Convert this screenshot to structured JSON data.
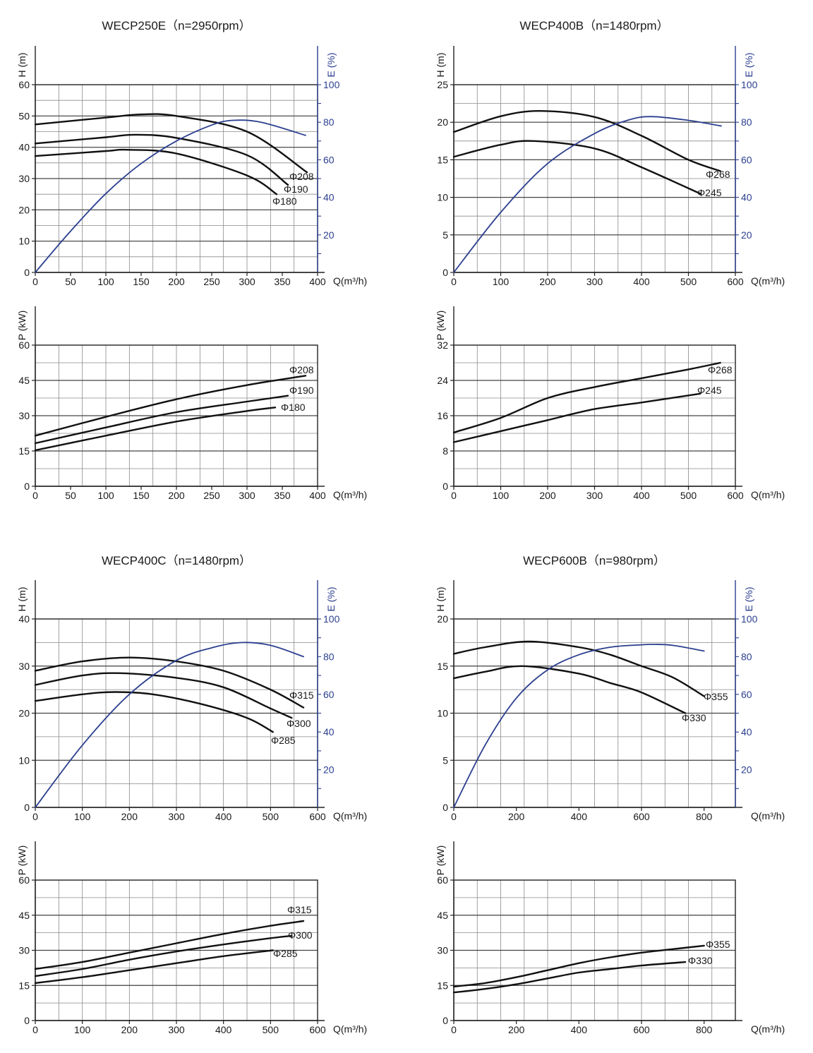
{
  "charts_meta": {
    "head_color": "#111111",
    "eff_color": "#2b3f8f",
    "grid_color": "#333333"
  },
  "chart_data": [
    {
      "type": "line",
      "title": "WECP250E（n=2950rpm）",
      "panels": [
        {
          "name": "head-efficiency",
          "xlabel": "Q(m³/h)",
          "ylabel": "H (m)",
          "y2label": "E (%)",
          "xlim": [
            0,
            400
          ],
          "ylim": [
            0,
            60
          ],
          "y2lim": [
            0,
            100
          ],
          "xticks": [
            "0",
            "50",
            "100",
            "150",
            "200",
            "250",
            "300",
            "350",
            "400"
          ],
          "yticks": [
            "0",
            "10",
            "20",
            "30",
            "40",
            "50",
            "60"
          ],
          "y2ticks": [
            "20",
            "40",
            "60",
            "80",
            "100"
          ],
          "grid": true,
          "series": [
            {
              "name": "Φ208",
              "axis": "left",
              "x": [
                0,
                100,
                150,
                200,
                300,
                385
              ],
              "y": [
                47.3,
                49.5,
                50.5,
                50,
                45,
                32
              ]
            },
            {
              "name": "Φ190",
              "axis": "left",
              "x": [
                0,
                100,
                140,
                200,
                300,
                358
              ],
              "y": [
                41.2,
                43.2,
                44,
                43,
                37.5,
                28
              ]
            },
            {
              "name": "Φ180",
              "axis": "left",
              "x": [
                0,
                100,
                130,
                200,
                300,
                342
              ],
              "y": [
                37.2,
                38.8,
                39.2,
                38,
                31,
                25
              ]
            },
            {
              "name": "E",
              "axis": "right",
              "x": [
                0,
                50,
                100,
                150,
                200,
                250,
                280,
                320,
                383
              ],
              "y": [
                0,
                22,
                42,
                58,
                70,
                78.5,
                81,
                80,
                73
              ]
            }
          ]
        },
        {
          "name": "power",
          "xlabel": "Q(m³/h)",
          "ylabel": "P (kW)",
          "xlim": [
            0,
            400
          ],
          "ylim": [
            0,
            60
          ],
          "xticks": [
            "0",
            "50",
            "100",
            "150",
            "200",
            "250",
            "300",
            "350",
            "400"
          ],
          "yticks": [
            "0",
            "15",
            "30",
            "45",
            "60"
          ],
          "grid": true,
          "series": [
            {
              "name": "Φ208",
              "x": [
                0,
                100,
                200,
                300,
                383
              ],
              "y": [
                21.5,
                29.5,
                37,
                43,
                47
              ]
            },
            {
              "name": "Φ190",
              "x": [
                0,
                100,
                200,
                300,
                358
              ],
              "y": [
                18.3,
                25,
                31.5,
                36,
                38.5
              ]
            },
            {
              "name": "Φ180",
              "x": [
                0,
                100,
                200,
                300,
                340
              ],
              "y": [
                15.3,
                21.5,
                27.5,
                32,
                33.5
              ]
            }
          ]
        }
      ]
    },
    {
      "type": "line",
      "title": "WECP400B（n=1480rpm）",
      "panels": [
        {
          "name": "head-efficiency",
          "xlabel": "Q(m³/h)",
          "ylabel": "H (m)",
          "y2label": "E (%)",
          "xlim": [
            0,
            600
          ],
          "ylim": [
            0,
            25
          ],
          "y2lim": [
            0,
            100
          ],
          "xticks": [
            "0",
            "100",
            "200",
            "300",
            "400",
            "500",
            "600"
          ],
          "yticks": [
            "0",
            "5",
            "10",
            "15",
            "20",
            "25"
          ],
          "y2ticks": [
            "20",
            "40",
            "60",
            "80",
            "100"
          ],
          "grid": true,
          "series": [
            {
              "name": "Φ268",
              "axis": "left",
              "x": [
                0,
                100,
                185,
                300,
                400,
                500,
                568
              ],
              "y": [
                18.7,
                20.8,
                21.5,
                20.7,
                18.2,
                15,
                13.5
              ]
            },
            {
              "name": "Φ245",
              "axis": "left",
              "x": [
                0,
                100,
                170,
                300,
                400,
                525
              ],
              "y": [
                15.4,
                17,
                17.5,
                16.5,
                14,
                10.5
              ]
            },
            {
              "name": "E",
              "axis": "right",
              "x": [
                0,
                100,
                200,
                300,
                370,
                420,
                500,
                570
              ],
              "y": [
                0,
                32,
                58,
                74,
                81,
                83,
                81,
                78
              ]
            }
          ]
        },
        {
          "name": "power",
          "xlabel": "Q(m³/h)",
          "ylabel": "P (kW)",
          "xlim": [
            0,
            600
          ],
          "ylim": [
            0,
            32
          ],
          "xticks": [
            "0",
            "100",
            "200",
            "300",
            "400",
            "500",
            "600"
          ],
          "yticks": [
            "0",
            "8",
            "16",
            "24",
            "32"
          ],
          "grid": true,
          "series": [
            {
              "name": "Φ268",
              "x": [
                0,
                100,
                200,
                300,
                400,
                500,
                568
              ],
              "y": [
                12.2,
                15.5,
                20,
                22.5,
                24.5,
                26.5,
                28
              ]
            },
            {
              "name": "Φ245",
              "x": [
                0,
                100,
                200,
                300,
                400,
                525
              ],
              "y": [
                10,
                12.5,
                15,
                17.5,
                19,
                21
              ]
            }
          ]
        }
      ]
    },
    {
      "type": "line",
      "title": "WECP400C（n=1480rpm）",
      "panels": [
        {
          "name": "head-efficiency",
          "xlabel": "Q(m³/h)",
          "ylabel": "H (m)",
          "y2label": "E (%)",
          "xlim": [
            0,
            600
          ],
          "ylim": [
            0,
            40
          ],
          "y2lim": [
            0,
            100
          ],
          "xticks": [
            "0",
            "100",
            "200",
            "300",
            "400",
            "500",
            "600"
          ],
          "yticks": [
            "0",
            "10",
            "20",
            "30",
            "40"
          ],
          "y2ticks": [
            "20",
            "40",
            "60",
            "80",
            "100"
          ],
          "grid": true,
          "series": [
            {
              "name": "Φ315",
              "axis": "left",
              "x": [
                0,
                100,
                200,
                300,
                400,
                500,
                570
              ],
              "y": [
                29,
                31,
                31.8,
                31,
                29,
                25,
                21.2
              ]
            },
            {
              "name": "Φ300",
              "axis": "left",
              "x": [
                0,
                100,
                180,
                300,
                400,
                500,
                545
              ],
              "y": [
                26,
                28,
                28.5,
                27.5,
                25.5,
                21,
                19
              ]
            },
            {
              "name": "Φ285",
              "axis": "left",
              "x": [
                0,
                100,
                170,
                250,
                350,
                450,
                505
              ],
              "y": [
                22.6,
                24,
                24.5,
                24,
                22,
                19,
                16
              ]
            },
            {
              "name": "E",
              "axis": "right",
              "x": [
                0,
                100,
                200,
                300,
                380,
                440,
                500,
                570
              ],
              "y": [
                0,
                33,
                60,
                78,
                85,
                87.5,
                86,
                80
              ]
            }
          ]
        },
        {
          "name": "power",
          "xlabel": "Q(m³/h)",
          "ylabel": "P (kW)",
          "xlim": [
            0,
            600
          ],
          "ylim": [
            0,
            60
          ],
          "xticks": [
            "0",
            "100",
            "200",
            "300",
            "400",
            "500",
            "600"
          ],
          "yticks": [
            "0",
            "15",
            "30",
            "45",
            "60"
          ],
          "grid": true,
          "series": [
            {
              "name": "Φ315",
              "x": [
                0,
                100,
                200,
                300,
                400,
                500,
                570
              ],
              "y": [
                22,
                25,
                29,
                33,
                37,
                40.5,
                42.5
              ]
            },
            {
              "name": "Φ300",
              "x": [
                0,
                100,
                200,
                300,
                400,
                500,
                545
              ],
              "y": [
                19,
                22,
                26,
                29.5,
                32.5,
                35.2,
                36.2
              ]
            },
            {
              "name": "Φ285",
              "x": [
                0,
                100,
                200,
                300,
                400,
                505
              ],
              "y": [
                16,
                18.5,
                21.5,
                24.5,
                27.5,
                30
              ]
            }
          ]
        }
      ]
    },
    {
      "type": "line",
      "title": "WECP600B（n=980rpm）",
      "panels": [
        {
          "name": "head-efficiency",
          "xlabel": "Q(m³/h)",
          "ylabel": "H (m)",
          "y2label": "E (%)",
          "xlim": [
            0,
            900
          ],
          "ylim": [
            0,
            20
          ],
          "y2lim": [
            0,
            100
          ],
          "xticks": [
            "0",
            "200",
            "400",
            "600",
            "800"
          ],
          "yticks": [
            "0",
            "5",
            "10",
            "15",
            "20"
          ],
          "y2ticks": [
            "20",
            "40",
            "60",
            "80",
            "100"
          ],
          "grid": true,
          "series": [
            {
              "name": "Φ355",
              "axis": "left",
              "x": [
                0,
                100,
                240,
                400,
                500,
                600,
                700,
                800
              ],
              "y": [
                16.3,
                17,
                17.6,
                17,
                16.2,
                15,
                13.8,
                11.8
              ]
            },
            {
              "name": "Φ330",
              "axis": "left",
              "x": [
                0,
                100,
                220,
                400,
                500,
                600,
                740
              ],
              "y": [
                13.7,
                14.4,
                15,
                14.2,
                13.2,
                12.2,
                10
              ]
            },
            {
              "name": "E",
              "axis": "right",
              "x": [
                0,
                100,
                200,
                300,
                400,
                500,
                600,
                640,
                700,
                800
              ],
              "y": [
                0,
                33,
                58,
                73,
                81,
                85,
                86.3,
                86.5,
                86,
                83
              ]
            }
          ]
        },
        {
          "name": "power",
          "xlabel": "Q(m³/h)",
          "ylabel": "P (kW)",
          "xlim": [
            0,
            900
          ],
          "ylim": [
            0,
            60
          ],
          "xticks": [
            "0",
            "200",
            "400",
            "600",
            "800"
          ],
          "yticks": [
            "0",
            "15",
            "30",
            "45",
            "60"
          ],
          "grid": true,
          "series": [
            {
              "name": "Φ355",
              "x": [
                0,
                100,
                200,
                300,
                400,
                500,
                600,
                700,
                800
              ],
              "y": [
                14.5,
                16,
                18.5,
                21.5,
                24.5,
                27,
                29,
                30.5,
                32
              ]
            },
            {
              "name": "Φ330",
              "x": [
                0,
                100,
                200,
                300,
                400,
                500,
                600,
                740
              ],
              "y": [
                12,
                13.5,
                15.5,
                18,
                20.5,
                22,
                23.5,
                25
              ]
            }
          ]
        }
      ]
    }
  ]
}
